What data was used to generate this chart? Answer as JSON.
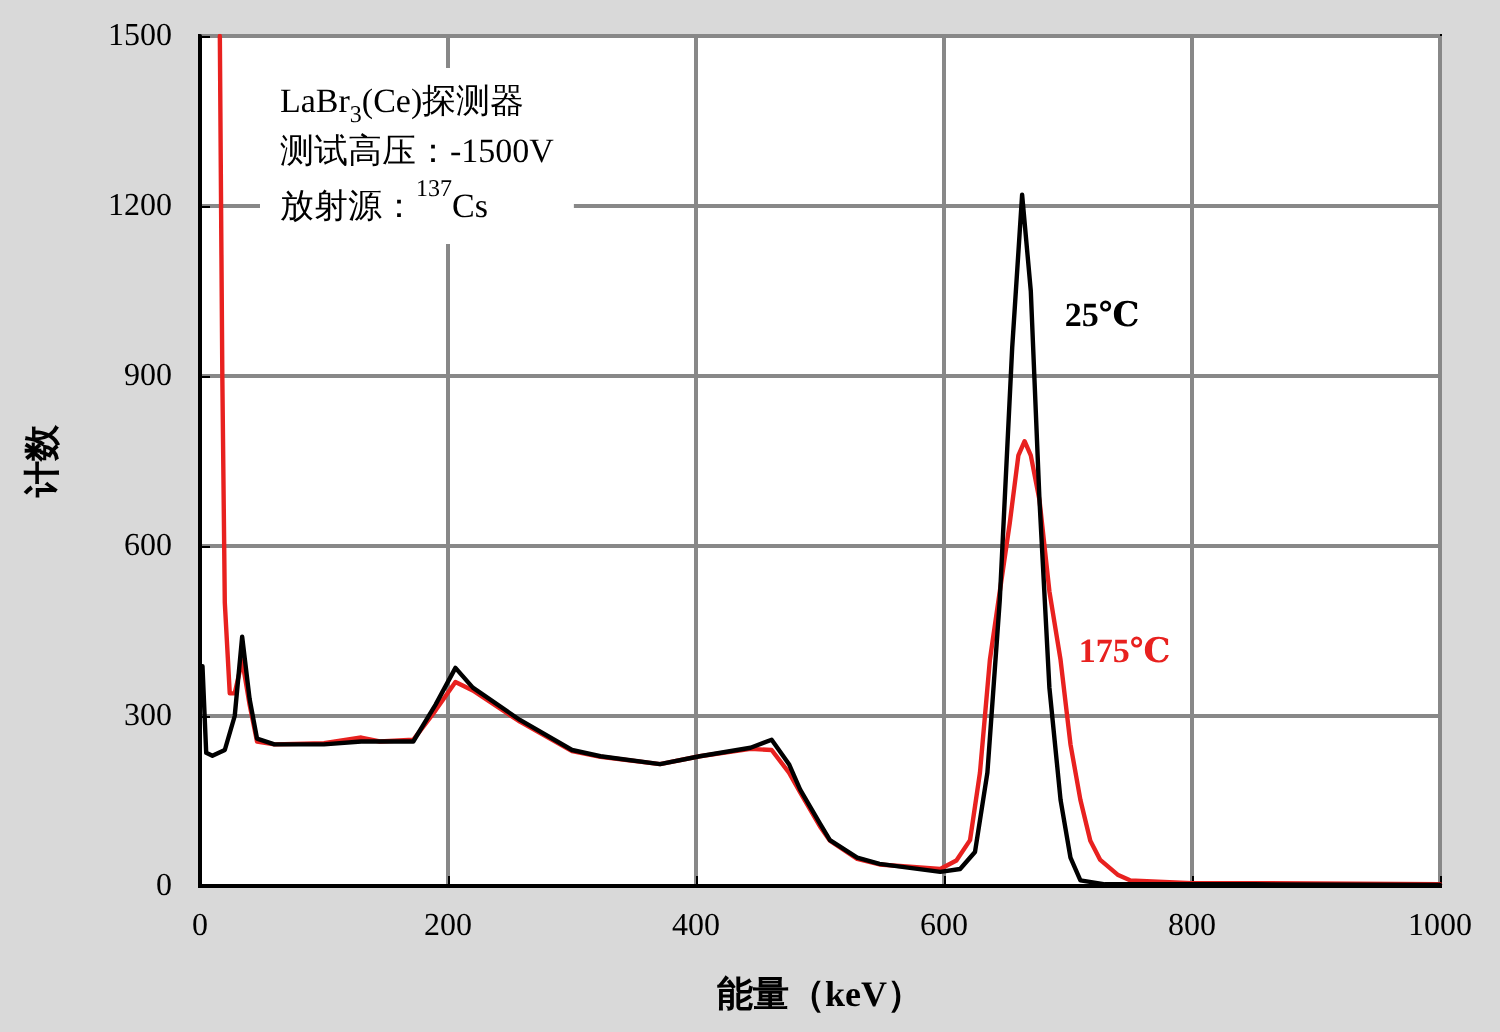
{
  "chart_data": {
    "type": "line",
    "xlabel": "能量（keV）",
    "ylabel": "计数",
    "xlim": [
      0,
      1000
    ],
    "xticks": [
      0,
      200,
      400,
      600,
      800,
      1000
    ],
    "ylim": [
      0,
      1500
    ],
    "yticks": [
      0,
      300,
      600,
      900,
      1200,
      1500
    ],
    "grid": true,
    "legend": false,
    "marker": "none",
    "line_style": "solid",
    "annotations": [
      "LaBr$_{3}$(Ce)探测器",
      "测试高压：-1500V",
      "放射源：$^{137}$Cs"
    ],
    "series": [
      {
        "name": "25℃",
        "color": "#000000",
        "x": [
          2,
          5,
          10,
          20,
          28,
          34,
          40,
          46,
          60,
          100,
          130,
          172,
          190,
          206,
          220,
          258,
          300,
          323,
          371,
          403,
          444,
          461,
          475,
          484,
          500,
          508,
          530,
          548,
          597,
          613,
          625,
          635,
          645,
          655,
          663,
          670,
          677,
          685,
          694,
          702,
          710,
          730,
          850,
          1000
        ],
        "values": [
          388,
          235,
          230,
          240,
          300,
          440,
          330,
          260,
          250,
          250,
          255,
          255,
          320,
          385,
          350,
          293,
          240,
          229,
          215,
          229,
          244,
          258,
          215,
          170,
          110,
          81,
          50,
          39,
          25,
          30,
          60,
          200,
          505,
          950,
          1220,
          1050,
          681,
          350,
          152,
          50,
          10,
          3,
          3,
          2
        ]
      },
      {
        "name": "175℃",
        "color": "#e8211f",
        "x": [
          16,
          18,
          20,
          24,
          28,
          34,
          40,
          46,
          60,
          100,
          130,
          145,
          172,
          190,
          206,
          220,
          258,
          300,
          323,
          371,
          403,
          444,
          461,
          475,
          484,
          500,
          508,
          530,
          548,
          597,
          610,
          621,
          629,
          637,
          645,
          653,
          660,
          665,
          670,
          677,
          685,
          694,
          702,
          710,
          718,
          726,
          740,
          750,
          800,
          850,
          1000
        ],
        "values": [
          1500,
          900,
          500,
          340,
          340,
          398,
          320,
          255,
          250,
          252,
          262,
          255,
          258,
          310,
          360,
          345,
          290,
          238,
          228,
          215,
          229,
          242,
          240,
          200,
          165,
          105,
          80,
          48,
          38,
          30,
          45,
          81,
          200,
          399,
          520,
          640,
          760,
          785,
          760,
          681,
          520,
          399,
          250,
          152,
          80,
          46,
          20,
          10,
          5,
          5,
          3
        ]
      }
    ]
  }
}
